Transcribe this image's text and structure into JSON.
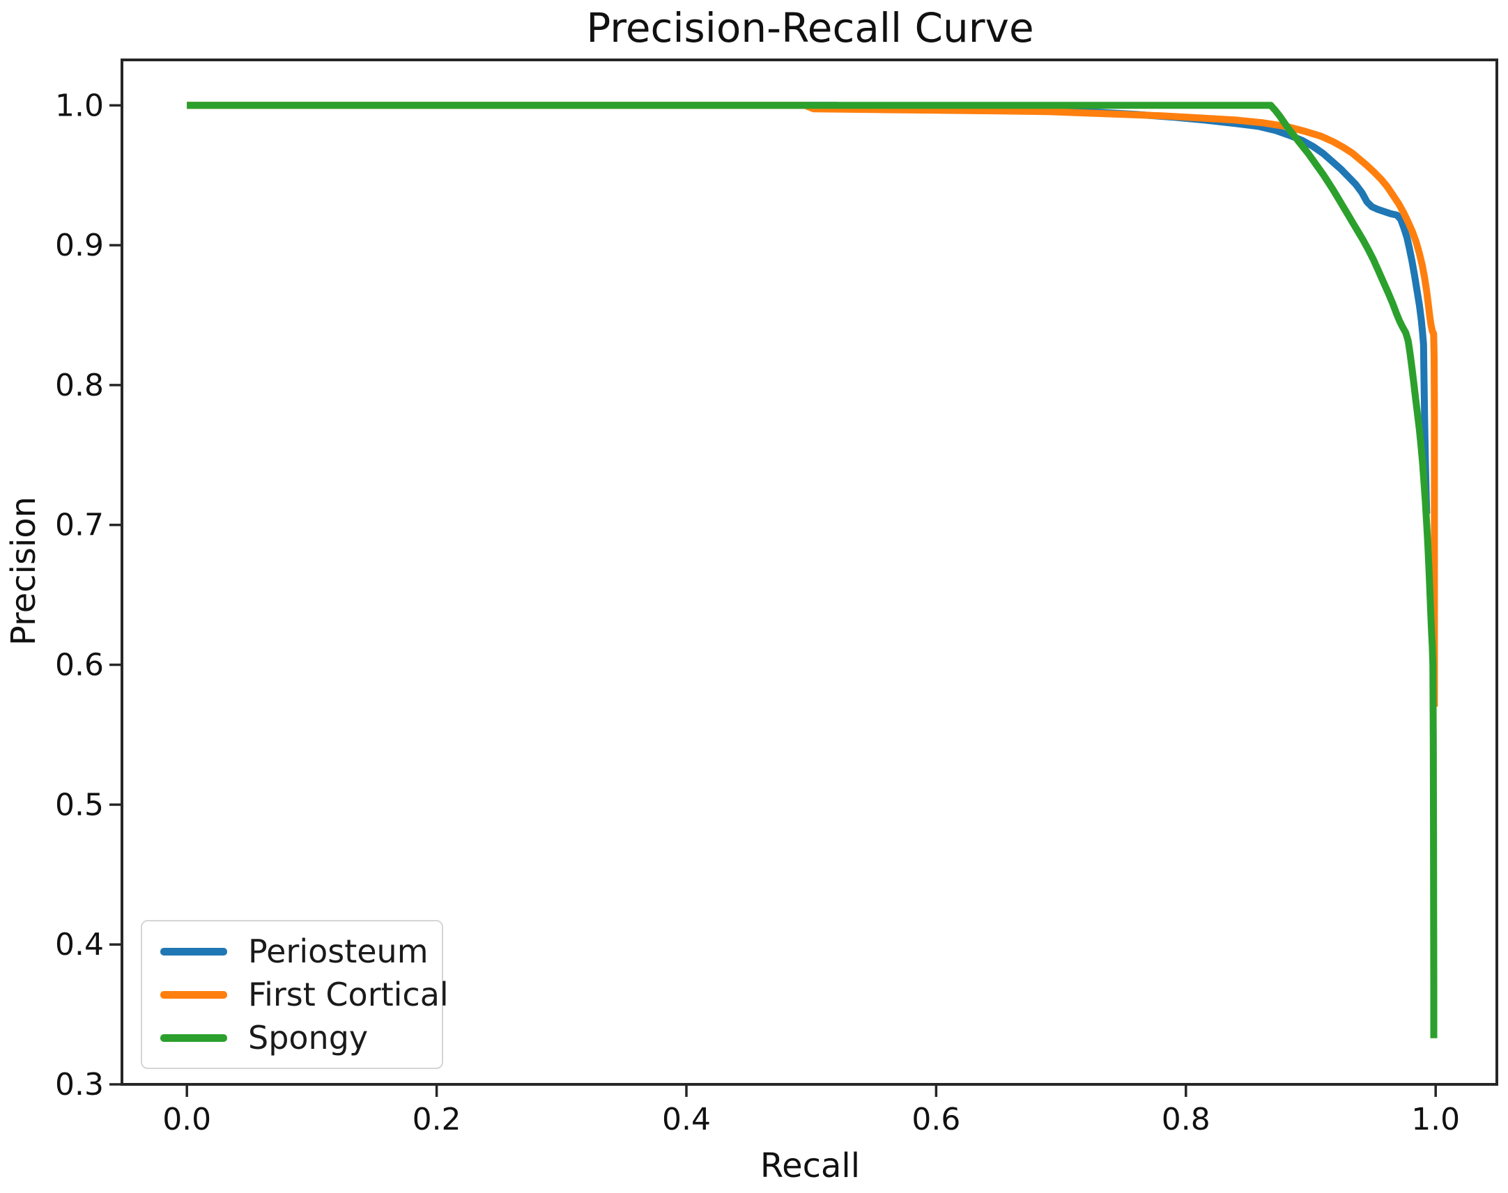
{
  "chart_data": {
    "type": "line",
    "title": "Precision-Recall Curve",
    "xlabel": "Recall",
    "ylabel": "Precision",
    "xlim": [
      -0.052,
      1.049
    ],
    "ylim": [
      0.3,
      1.0325
    ],
    "grid": false,
    "legend_position": "lower left",
    "axis_color": "#262626",
    "x_ticks": {
      "values": [
        0.0,
        0.2,
        0.4,
        0.6,
        0.8,
        1.0
      ],
      "labels": [
        "0.0",
        "0.2",
        "0.4",
        "0.6",
        "0.8",
        "1.0"
      ]
    },
    "y_ticks": {
      "values": [
        0.3,
        0.4,
        0.5,
        0.6,
        0.7,
        0.8,
        0.9,
        1.0
      ],
      "labels": [
        "0.3",
        "0.4",
        "0.5",
        "0.6",
        "0.7",
        "0.8",
        "0.9",
        "1.0"
      ]
    },
    "series": [
      {
        "name": "Periosteum",
        "color": "#1f77b4",
        "points": [
          [
            0,
            1
          ],
          [
            0.35,
            1
          ],
          [
            0.52,
            1
          ],
          [
            0.545,
            0.9985
          ],
          [
            0.58,
            0.998
          ],
          [
            0.62,
            0.9975
          ],
          [
            0.66,
            0.997
          ],
          [
            0.7,
            0.996
          ],
          [
            0.73,
            0.995
          ],
          [
            0.76,
            0.9935
          ],
          [
            0.79,
            0.9915
          ],
          [
            0.815,
            0.9895
          ],
          [
            0.84,
            0.987
          ],
          [
            0.858,
            0.985
          ],
          [
            0.872,
            0.982
          ],
          [
            0.883,
            0.9785
          ],
          [
            0.893,
            0.975
          ],
          [
            0.902,
            0.9705
          ],
          [
            0.91,
            0.9655
          ],
          [
            0.917,
            0.96
          ],
          [
            0.924,
            0.9545
          ],
          [
            0.93,
            0.949
          ],
          [
            0.936,
            0.9435
          ],
          [
            0.941,
            0.9375
          ],
          [
            0.945,
            0.931
          ],
          [
            0.949,
            0.9275
          ],
          [
            0.954,
            0.9255
          ],
          [
            0.959,
            0.924
          ],
          [
            0.964,
            0.9225
          ],
          [
            0.969,
            0.9215
          ],
          [
            0.972,
            0.9185
          ],
          [
            0.9745,
            0.9125
          ],
          [
            0.977,
            0.9055
          ],
          [
            0.979,
            0.8975
          ],
          [
            0.981,
            0.889
          ],
          [
            0.983,
            0.879
          ],
          [
            0.985,
            0.868
          ],
          [
            0.987,
            0.857
          ],
          [
            0.9885,
            0.8465
          ],
          [
            0.9895,
            0.8375
          ],
          [
            0.9903,
            0.829
          ],
          [
            0.9906,
            0.81
          ],
          [
            0.9909,
            0.79
          ],
          [
            0.9913,
            0.768
          ],
          [
            0.9918,
            0.745
          ],
          [
            0.9924,
            0.722
          ],
          [
            0.9928,
            0.708
          ]
        ]
      },
      {
        "name": "First Cortical",
        "color": "#ff7f0e",
        "points": [
          [
            0,
            1
          ],
          [
            0.3,
            1
          ],
          [
            0.495,
            1
          ],
          [
            0.502,
            0.9975
          ],
          [
            0.55,
            0.997
          ],
          [
            0.6,
            0.9965
          ],
          [
            0.65,
            0.996
          ],
          [
            0.69,
            0.9955
          ],
          [
            0.72,
            0.9945
          ],
          [
            0.75,
            0.9935
          ],
          [
            0.78,
            0.9925
          ],
          [
            0.81,
            0.991
          ],
          [
            0.84,
            0.9895
          ],
          [
            0.862,
            0.9875
          ],
          [
            0.88,
            0.985
          ],
          [
            0.895,
            0.9815
          ],
          [
            0.908,
            0.978
          ],
          [
            0.918,
            0.974
          ],
          [
            0.926,
            0.97
          ],
          [
            0.933,
            0.966
          ],
          [
            0.939,
            0.9615
          ],
          [
            0.945,
            0.957
          ],
          [
            0.951,
            0.952
          ],
          [
            0.9565,
            0.947
          ],
          [
            0.9615,
            0.9415
          ],
          [
            0.966,
            0.9355
          ],
          [
            0.9705,
            0.9295
          ],
          [
            0.9745,
            0.923
          ],
          [
            0.978,
            0.9165
          ],
          [
            0.9815,
            0.9095
          ],
          [
            0.9845,
            0.902
          ],
          [
            0.987,
            0.894
          ],
          [
            0.9893,
            0.8855
          ],
          [
            0.9912,
            0.8765
          ],
          [
            0.9928,
            0.867
          ],
          [
            0.9942,
            0.857
          ],
          [
            0.9954,
            0.8485
          ],
          [
            0.9964,
            0.8425
          ],
          [
            0.9974,
            0.8385
          ],
          [
            0.9984,
            0.8365
          ],
          [
            0.9988,
            0.82
          ],
          [
            0.999,
            0.78
          ],
          [
            0.999,
            0.73
          ],
          [
            0.999,
            0.68
          ],
          [
            0.999,
            0.625
          ],
          [
            0.999,
            0.57
          ]
        ]
      },
      {
        "name": "Spongy",
        "color": "#2ca02c",
        "points": [
          [
            0,
            1
          ],
          [
            0.45,
            1
          ],
          [
            0.75,
            1
          ],
          [
            0.868,
            1
          ],
          [
            0.8715,
            0.9965
          ],
          [
            0.875,
            0.9925
          ],
          [
            0.8785,
            0.988
          ],
          [
            0.882,
            0.9835
          ],
          [
            0.886,
            0.979
          ],
          [
            0.89,
            0.9745
          ],
          [
            0.894,
            0.97
          ],
          [
            0.898,
            0.9655
          ],
          [
            0.902,
            0.9605
          ],
          [
            0.906,
            0.9555
          ],
          [
            0.91,
            0.9505
          ],
          [
            0.914,
            0.945
          ],
          [
            0.918,
            0.9395
          ],
          [
            0.922,
            0.9335
          ],
          [
            0.926,
            0.9275
          ],
          [
            0.93,
            0.9215
          ],
          [
            0.934,
            0.9155
          ],
          [
            0.938,
            0.9095
          ],
          [
            0.942,
            0.9035
          ],
          [
            0.946,
            0.897
          ],
          [
            0.95,
            0.89
          ],
          [
            0.954,
            0.882
          ],
          [
            0.958,
            0.874
          ],
          [
            0.962,
            0.866
          ],
          [
            0.9655,
            0.8585
          ],
          [
            0.9685,
            0.8515
          ],
          [
            0.971,
            0.846
          ],
          [
            0.9735,
            0.8415
          ],
          [
            0.976,
            0.8375
          ],
          [
            0.978,
            0.8315
          ],
          [
            0.9795,
            0.8225
          ],
          [
            0.981,
            0.8125
          ],
          [
            0.9825,
            0.8015
          ],
          [
            0.984,
            0.79
          ],
          [
            0.9855,
            0.779
          ],
          [
            0.987,
            0.768
          ],
          [
            0.9883,
            0.7565
          ],
          [
            0.9895,
            0.7445
          ],
          [
            0.9906,
            0.7315
          ],
          [
            0.9917,
            0.7175
          ],
          [
            0.9927,
            0.7025
          ],
          [
            0.9937,
            0.6865
          ],
          [
            0.9946,
            0.6695
          ],
          [
            0.9954,
            0.6525
          ],
          [
            0.9961,
            0.6365
          ],
          [
            0.9967,
            0.6235
          ],
          [
            0.9973,
            0.6125
          ],
          [
            0.9978,
            0.6
          ],
          [
            0.9981,
            0.545
          ],
          [
            0.9983,
            0.48
          ],
          [
            0.9984,
            0.42
          ],
          [
            0.9985,
            0.37
          ],
          [
            0.9985,
            0.333
          ]
        ]
      }
    ]
  }
}
